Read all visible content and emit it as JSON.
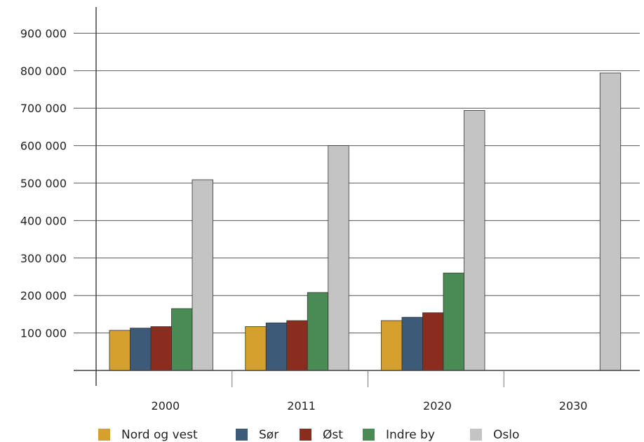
{
  "chart_data": {
    "type": "bar",
    "categories": [
      "2000",
      "2011",
      "2020",
      "2030"
    ],
    "series": [
      {
        "name": "Nord og vest",
        "color": "#d6a02e",
        "values": [
          107000,
          117000,
          133000,
          null
        ]
      },
      {
        "name": "Sør",
        "color": "#3d5a78",
        "values": [
          113000,
          127000,
          142000,
          null
        ]
      },
      {
        "name": "Øst",
        "color": "#8a2d1e",
        "values": [
          117000,
          133000,
          154000,
          null
        ]
      },
      {
        "name": "Indre by",
        "color": "#4a8a55",
        "values": [
          165000,
          208000,
          260000,
          null
        ]
      },
      {
        "name": "Oslo",
        "color": "#c4c4c4",
        "values": [
          509000,
          600000,
          694000,
          794000
        ]
      }
    ],
    "yticks": [
      "100 000",
      "200 000",
      "300 000",
      "400 000",
      "500 000",
      "600 000",
      "700 000",
      "800 000",
      "900 000"
    ],
    "ylim": [
      0,
      900000
    ],
    "title": "",
    "xlabel": "",
    "ylabel": "",
    "grid": true,
    "legend": "bottom"
  }
}
